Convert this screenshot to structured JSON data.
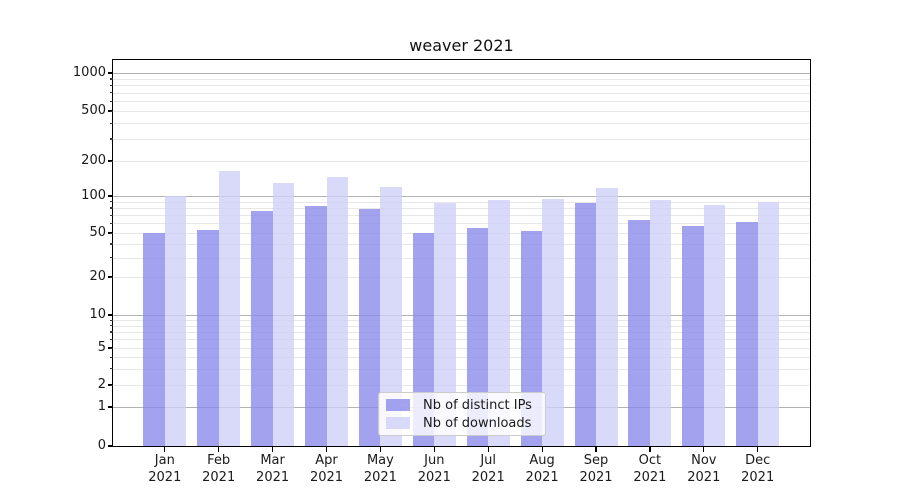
{
  "title": "weaver 2021",
  "colors": {
    "bar_ips": "rgba(136,136,234,0.78)",
    "bar_downloads": "rgba(206,206,247,0.78)",
    "grid_major": "#b2b2b2",
    "grid_minor": "#e7e7e7",
    "axis_line": "#000000",
    "text": "#1a1a1a",
    "legend_bg": "rgba(255,255,255,0.8)",
    "legend_border": "#cccccc"
  },
  "legend": {
    "items": [
      {
        "label": "Nb of distinct IPs",
        "color_key": "bar_ips"
      },
      {
        "label": "Nb of downloads",
        "color_key": "bar_downloads"
      }
    ]
  },
  "y_axis": {
    "tick_labels": [
      "0",
      "1",
      "2",
      "5",
      "10",
      "20",
      "50",
      "100",
      "200",
      "500",
      "1000"
    ]
  },
  "chart_data": {
    "type": "bar",
    "title": "weaver 2021",
    "categories": [
      "Jan 2021",
      "Feb 2021",
      "Mar 2021",
      "Apr 2021",
      "May 2021",
      "Jun 2021",
      "Jul 2021",
      "Aug 2021",
      "Sep 2021",
      "Oct 2021",
      "Nov 2021",
      "Dec 2021"
    ],
    "series": [
      {
        "name": "Nb of distinct IPs",
        "values": [
          50,
          53,
          75,
          83,
          78,
          50,
          55,
          52,
          88,
          64,
          57,
          62
        ]
      },
      {
        "name": "Nb of downloads",
        "values": [
          100,
          165,
          130,
          147,
          120,
          88,
          92,
          95,
          118,
          92,
          85,
          90
        ]
      }
    ],
    "xlabel": "",
    "ylabel": "",
    "yscale": "symlog",
    "yticks": [
      0,
      1,
      2,
      5,
      10,
      20,
      50,
      100,
      200,
      500,
      1000
    ],
    "ylim": [
      0,
      1300
    ],
    "grid": true,
    "grid_major_at": [
      1,
      10,
      100,
      1000
    ],
    "legend_position": "lower center"
  }
}
